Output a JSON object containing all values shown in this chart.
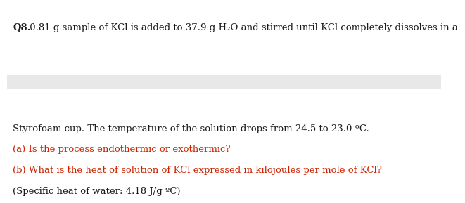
{
  "background_color": "#ffffff",
  "gray_band_color": "#e8e8e8",
  "q8_bold": "Q8.",
  "q8_rest": " 0.81 g sample of KCl is added to 37.9 g H₂O and stirred until KCl completely dissolves in a",
  "line2": "Styrofoam cup. The temperature of the solution drops from 24.5 to 23.0 ºC.",
  "line3": "(a) Is the process endothermic or exothermic?",
  "line4": "(b) What is the heat of solution of KCl expressed in kilojoules per mole of KCl?",
  "line5": "(Specific heat of water: 4.18 J/g ºC)",
  "red_color": "#cc2200",
  "black_color": "#1a1a1a",
  "fontsize": 9.5
}
